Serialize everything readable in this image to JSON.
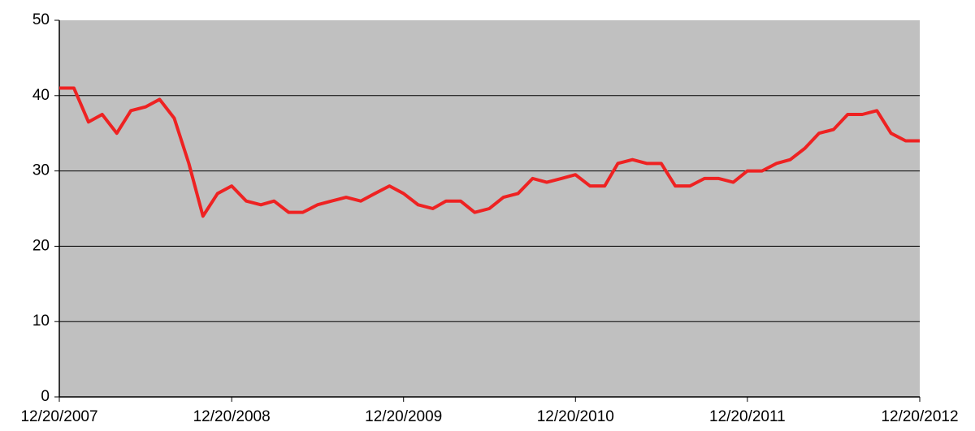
{
  "chart_data": {
    "type": "line",
    "x": [
      "12/20/2007",
      "01/20/2008",
      "02/20/2008",
      "03/20/2008",
      "04/20/2008",
      "05/20/2008",
      "06/20/2008",
      "07/20/2008",
      "08/20/2008",
      "09/20/2008",
      "10/20/2008",
      "11/20/2008",
      "12/20/2008",
      "01/20/2009",
      "02/20/2009",
      "03/20/2009",
      "04/20/2009",
      "05/20/2009",
      "06/20/2009",
      "07/20/2009",
      "08/20/2009",
      "09/20/2009",
      "10/20/2009",
      "11/20/2009",
      "12/20/2009",
      "01/20/2010",
      "02/20/2010",
      "03/20/2010",
      "04/20/2010",
      "05/20/2010",
      "06/20/2010",
      "07/20/2010",
      "08/20/2010",
      "09/20/2010",
      "10/20/2010",
      "11/20/2010",
      "12/20/2010",
      "01/20/2011",
      "02/20/2011",
      "03/20/2011",
      "04/20/2011",
      "05/20/2011",
      "06/20/2011",
      "07/20/2011",
      "08/20/2011",
      "09/20/2011",
      "10/20/2011",
      "11/20/2011",
      "12/20/2011",
      "01/20/2012",
      "02/20/2012",
      "03/20/2012",
      "04/20/2012",
      "05/20/2012",
      "06/20/2012",
      "07/20/2012",
      "08/20/2012",
      "09/20/2012",
      "10/20/2012",
      "11/20/2012",
      "12/20/2012"
    ],
    "series": [
      {
        "color": "#ee2222",
        "values": [
          41,
          41,
          36.5,
          37.5,
          35,
          38,
          38.5,
          39.5,
          37,
          31,
          24,
          27,
          28,
          26,
          25.5,
          26,
          24.5,
          24.5,
          25.5,
          26,
          26.5,
          26,
          27,
          28,
          27,
          25.5,
          25,
          26,
          26,
          24.5,
          25,
          26.5,
          27,
          29,
          28.5,
          29,
          29.5,
          28,
          28,
          31,
          31.5,
          31,
          31,
          28,
          28,
          29,
          29,
          28.5,
          30,
          30,
          31,
          31.5,
          33,
          35,
          35.5,
          37.5,
          37.5,
          38,
          35,
          34,
          34
        ]
      }
    ],
    "xlim": [
      "12/20/2007",
      "12/20/2012"
    ],
    "xticks": [
      "12/20/2007",
      "12/20/2008",
      "12/20/2009",
      "12/20/2010",
      "12/20/2011",
      "12/20/2012"
    ],
    "ylim": [
      0,
      50
    ],
    "yticks": [
      0,
      10,
      20,
      30,
      40,
      50
    ],
    "grid": true
  }
}
